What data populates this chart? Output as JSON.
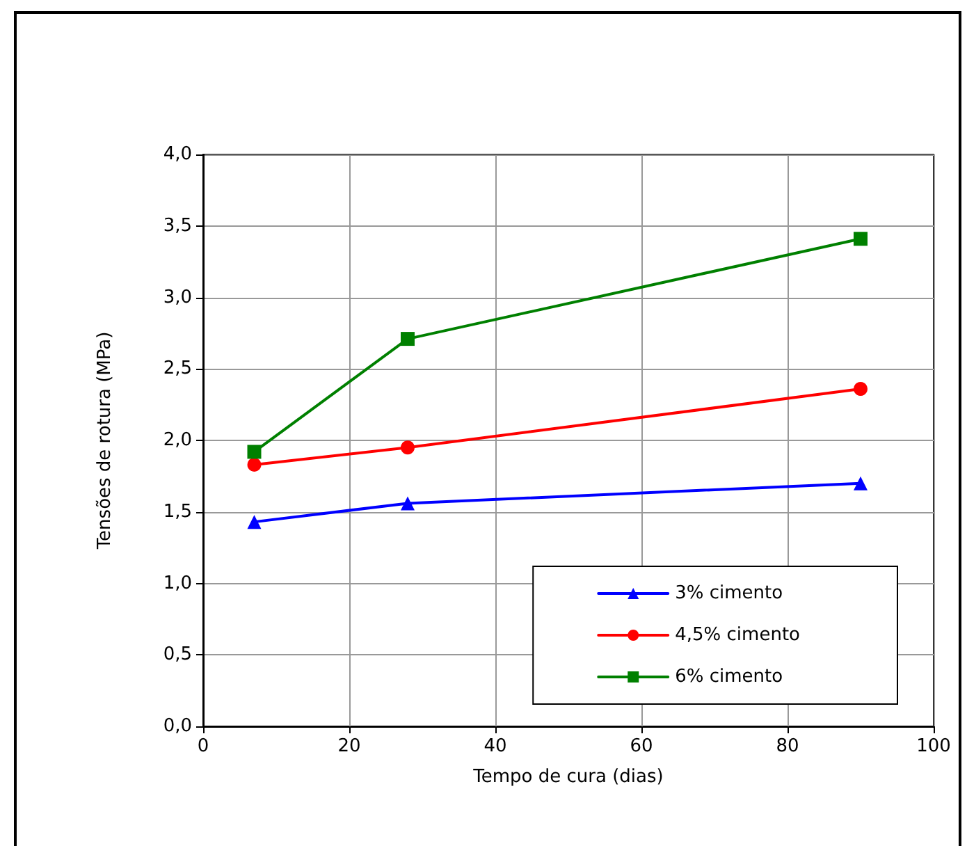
{
  "chart_data": {
    "type": "line",
    "xlabel": "Tempo de cura (dias)",
    "ylabel": "Tensões de rotura (MPa)",
    "xlim": [
      0,
      100
    ],
    "xticks": [
      0,
      20,
      40,
      60,
      80,
      100
    ],
    "ylim": [
      0,
      4
    ],
    "yticks": [
      {
        "value": 0,
        "label": "0,0"
      },
      {
        "value": 0.5,
        "label": "0,5"
      },
      {
        "value": 1,
        "label": "1,0"
      },
      {
        "value": 1.5,
        "label": "1,5"
      },
      {
        "value": 2,
        "label": "2,0"
      },
      {
        "value": 2.5,
        "label": "2,5"
      },
      {
        "value": 3,
        "label": "3,0"
      },
      {
        "value": 3.5,
        "label": "3,5"
      },
      {
        "value": 4,
        "label": "4,0"
      }
    ],
    "grid": true,
    "legend": "bottom right",
    "line_style": "solid",
    "x": [
      7,
      28,
      90
    ],
    "series": [
      {
        "name": "3% cimento",
        "color": "#0000ff",
        "marker": "triangle",
        "values": [
          1.43,
          1.56,
          1.7
        ]
      },
      {
        "name": "4,5% cimento",
        "color": "#ff0000",
        "marker": "circle",
        "values": [
          1.83,
          1.95,
          2.36
        ]
      },
      {
        "name": "6% cimento",
        "color": "#008000",
        "marker": "square",
        "values": [
          1.92,
          2.71,
          3.41
        ]
      }
    ]
  }
}
